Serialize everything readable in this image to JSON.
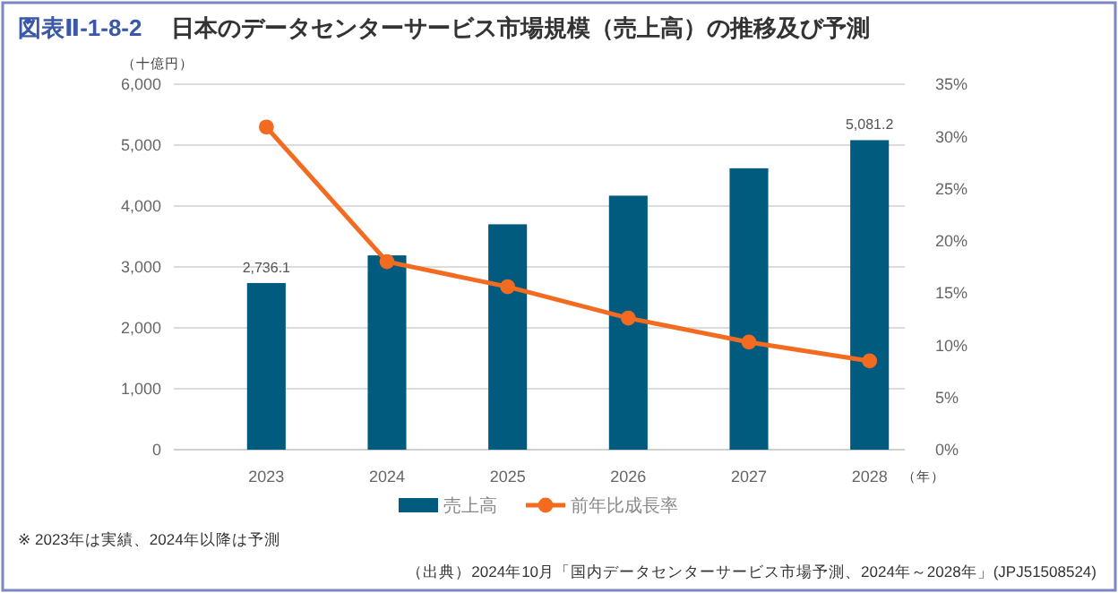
{
  "chart_data": {
    "type": "bar",
    "title": "図表Ⅱ-1-8-2　日本のデータセンターサービス市場規模（売上高）の推移及び予測",
    "ylabel": "（十億円）",
    "xlabel": "（年）",
    "categories": [
      "2023",
      "2024",
      "2025",
      "2026",
      "2027",
      "2028"
    ],
    "series": [
      {
        "name": "売上高",
        "color": "#005b7f",
        "values": [
          2736.1,
          3190,
          3700,
          4170,
          4620,
          5081.2
        ],
        "value_labels": [
          "2,736.1",
          null,
          null,
          null,
          null,
          "5,081.2"
        ]
      },
      {
        "name": "前年比成長率",
        "type": "line",
        "axis": "y2",
        "color": "#f26b21",
        "values": [
          30.9,
          18.0,
          15.6,
          12.6,
          10.3,
          8.5
        ]
      }
    ],
    "ylim": [
      0,
      6000
    ],
    "yticks": [
      {
        "value": 0,
        "label": "0"
      },
      {
        "value": 1000,
        "label": "1,000"
      },
      {
        "value": 2000,
        "label": "2,000"
      },
      {
        "value": 3000,
        "label": "3,000"
      },
      {
        "value": 4000,
        "label": "4,000"
      },
      {
        "value": 5000,
        "label": "5,000"
      },
      {
        "value": 6000,
        "label": "6,000"
      }
    ],
    "y2lim": [
      0,
      35
    ],
    "y2ticks": [
      {
        "value": 0,
        "label": "0%"
      },
      {
        "value": 5,
        "label": "5%"
      },
      {
        "value": 10,
        "label": "10%"
      },
      {
        "value": 15,
        "label": "15%"
      },
      {
        "value": 20,
        "label": "20%"
      },
      {
        "value": 25,
        "label": "25%"
      },
      {
        "value": 30,
        "label": "30%"
      },
      {
        "value": 35,
        "label": "35%"
      }
    ],
    "grid": "y",
    "legend": "bottom",
    "marker": "circle",
    "annotations": [
      "※ 2023年は実績、2024年以降は予測",
      "（出典）2024年10月「国内データセンターサービス市場予測、2024年～2028年」(JPJ51508524)"
    ]
  }
}
